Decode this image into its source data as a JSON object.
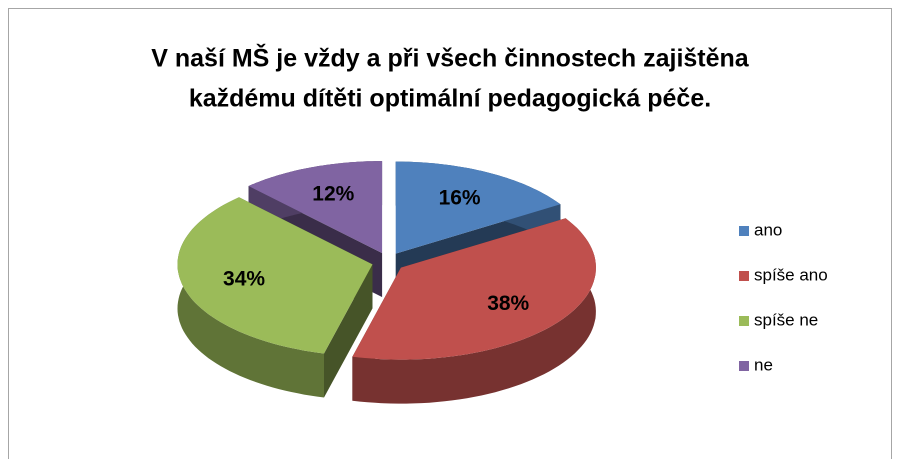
{
  "chart_data": {
    "type": "pie3d",
    "title": [
      "V naší MŠ je vždy a při všech činnostech zajištěna",
      "každému dítěti optimální pedagogická péče."
    ],
    "categories": [
      "ano",
      "spíše ano",
      "spíše ne",
      "ne"
    ],
    "values": [
      16,
      38,
      34,
      12
    ],
    "value_labels": [
      "16%",
      "38%",
      "34%",
      "12%"
    ],
    "colors": [
      "#4f81bd",
      "#c0504d",
      "#9bbb59",
      "#8064a2"
    ],
    "legend": "right"
  }
}
